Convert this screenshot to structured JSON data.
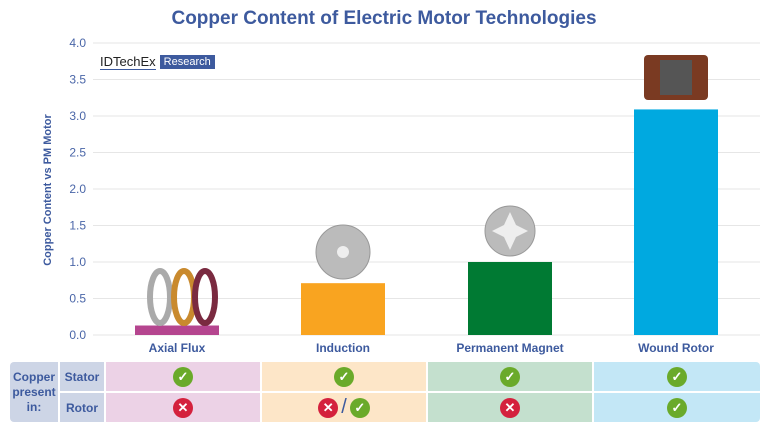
{
  "chart_data": {
    "type": "bar",
    "title": "Copper Content of Electric Motor Technologies",
    "ylabel": "Copper Content vs PM Motor",
    "xlabel": "",
    "ylim": [
      0,
      4.0
    ],
    "yticks": [
      "0.0",
      "0.5",
      "1.0",
      "1.5",
      "2.0",
      "2.5",
      "3.0",
      "3.5",
      "4.0"
    ],
    "categories": [
      "Axial Flux",
      "Induction",
      "Permanent Magnet",
      "Wound Rotor"
    ],
    "values": [
      0.13,
      0.71,
      1.0,
      3.09
    ],
    "colors": [
      "#b5458f",
      "#f9a420",
      "#007a33",
      "#00a9e0"
    ],
    "grid": true
  },
  "logo": {
    "brand": "IDTechEx",
    "tag": "Research"
  },
  "table": {
    "group_label": "Copper present in:",
    "rows": [
      {
        "label": "Stator",
        "cells": [
          "check",
          "check",
          "check",
          "check"
        ]
      },
      {
        "label": "Rotor",
        "cells": [
          "cross",
          "cross/check",
          "cross",
          "check"
        ]
      }
    ],
    "bg_colors": [
      "#ecd2e6",
      "#fde6c8",
      "#c4e0ce",
      "#c3e7f6"
    ]
  }
}
